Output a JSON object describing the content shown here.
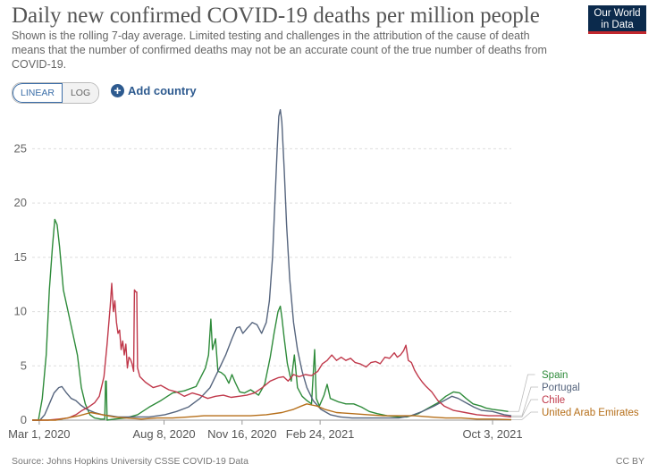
{
  "title": "Daily new confirmed COVID-19 deaths per million people",
  "subtitle": "Shown is the rolling 7-day average. Limited testing and challenges in the attribution of the cause of death means that the number of confirmed deaths may not be an accurate count of the true number of deaths from COVID-19.",
  "logo": {
    "line1": "Our World",
    "line2": "in Data"
  },
  "controls": {
    "linear_label": "LINEAR",
    "log_label": "LOG",
    "add_country_label": "Add country"
  },
  "footer": {
    "source": "Source: Johns Hopkins University CSSE COVID-19 Data",
    "license": "CC BY"
  },
  "chart_data": {
    "type": "line",
    "xaxis": "day",
    "xlim": [
      0,
      614
    ],
    "ylim": [
      0,
      28
    ],
    "yticks": [
      0,
      5,
      10,
      15,
      20,
      25
    ],
    "xticks": [
      {
        "day": 9,
        "label": "Mar 1, 2020"
      },
      {
        "day": 169,
        "label": "Aug 8, 2020"
      },
      {
        "day": 269,
        "label": "Nov 16, 2020"
      },
      {
        "day": 369,
        "label": "Feb 24, 2021"
      },
      {
        "day": 590,
        "label": "Oct 3, 2021"
      }
    ],
    "grid": true,
    "series": [
      {
        "name": "Spain",
        "color": "#2e8b3a",
        "points": [
          [
            0,
            0
          ],
          [
            8,
            0
          ],
          [
            13,
            2
          ],
          [
            18,
            6
          ],
          [
            22,
            12
          ],
          [
            26,
            16
          ],
          [
            29,
            18.5
          ],
          [
            32,
            18
          ],
          [
            35,
            16
          ],
          [
            40,
            12
          ],
          [
            46,
            10
          ],
          [
            52,
            8
          ],
          [
            58,
            6
          ],
          [
            63,
            3
          ],
          [
            68,
            1.5
          ],
          [
            74,
            0.5
          ],
          [
            80,
            0.2
          ],
          [
            88,
            0.1
          ],
          [
            93,
            0.1
          ],
          [
            94,
            3.6
          ],
          [
            95,
            3.6
          ],
          [
            96,
            0
          ],
          [
            105,
            0.1
          ],
          [
            120,
            0.2
          ],
          [
            135,
            0.5
          ],
          [
            150,
            1.2
          ],
          [
            165,
            1.8
          ],
          [
            180,
            2.5
          ],
          [
            195,
            2.7
          ],
          [
            210,
            3.1
          ],
          [
            222,
            4.8
          ],
          [
            226,
            6
          ],
          [
            229,
            9.3
          ],
          [
            231,
            6.5
          ],
          [
            235,
            7.5
          ],
          [
            238,
            4.5
          ],
          [
            242,
            4.4
          ],
          [
            247,
            4.1
          ],
          [
            252,
            3.4
          ],
          [
            256,
            4.2
          ],
          [
            260,
            3.5
          ],
          [
            266,
            2.6
          ],
          [
            272,
            2.5
          ],
          [
            280,
            2.8
          ],
          [
            290,
            2.3
          ],
          [
            298,
            3.3
          ],
          [
            305,
            5.8
          ],
          [
            310,
            8
          ],
          [
            315,
            10
          ],
          [
            318,
            10.5
          ],
          [
            320,
            9.5
          ],
          [
            323,
            7.5
          ],
          [
            327,
            5.2
          ],
          [
            332,
            3.6
          ],
          [
            336,
            6
          ],
          [
            338,
            4.5
          ],
          [
            340,
            3
          ],
          [
            346,
            2.2
          ],
          [
            352,
            1.8
          ],
          [
            358,
            1.5
          ],
          [
            362,
            6.5
          ],
          [
            364,
            2
          ],
          [
            368,
            1.3
          ],
          [
            374,
            2.3
          ],
          [
            378,
            3.3
          ],
          [
            382,
            2
          ],
          [
            392,
            1.7
          ],
          [
            402,
            1.5
          ],
          [
            412,
            1.5
          ],
          [
            422,
            1.2
          ],
          [
            432,
            0.8
          ],
          [
            442,
            0.6
          ],
          [
            455,
            0.4
          ],
          [
            470,
            0.3
          ],
          [
            480,
            0.3
          ],
          [
            495,
            0.6
          ],
          [
            510,
            1.2
          ],
          [
            520,
            1.6
          ],
          [
            530,
            2.2
          ],
          [
            540,
            2.6
          ],
          [
            548,
            2.5
          ],
          [
            556,
            2
          ],
          [
            565,
            1.5
          ],
          [
            575,
            1.3
          ],
          [
            582,
            1.1
          ],
          [
            590,
            1
          ],
          [
            600,
            0.9
          ],
          [
            610,
            0.8
          ]
        ]
      },
      {
        "name": "Portugal",
        "color": "#56657e",
        "points": [
          [
            0,
            0
          ],
          [
            10,
            0
          ],
          [
            16,
            0.5
          ],
          [
            22,
            1.5
          ],
          [
            28,
            2.5
          ],
          [
            34,
            3
          ],
          [
            38,
            3.1
          ],
          [
            44,
            2.5
          ],
          [
            50,
            2
          ],
          [
            56,
            1.8
          ],
          [
            62,
            1.4
          ],
          [
            70,
            1
          ],
          [
            80,
            0.7
          ],
          [
            90,
            0.5
          ],
          [
            100,
            0.4
          ],
          [
            110,
            0.3
          ],
          [
            130,
            0.3
          ],
          [
            150,
            0.3
          ],
          [
            170,
            0.5
          ],
          [
            185,
            0.8
          ],
          [
            200,
            1.2
          ],
          [
            215,
            2
          ],
          [
            228,
            3
          ],
          [
            238,
            4.5
          ],
          [
            248,
            6
          ],
          [
            256,
            7.5
          ],
          [
            262,
            8.5
          ],
          [
            266,
            8.6
          ],
          [
            270,
            8
          ],
          [
            276,
            8.5
          ],
          [
            282,
            9
          ],
          [
            288,
            8.8
          ],
          [
            294,
            8
          ],
          [
            300,
            9
          ],
          [
            304,
            11
          ],
          [
            308,
            15
          ],
          [
            311,
            20
          ],
          [
            314,
            25
          ],
          [
            316,
            28
          ],
          [
            318,
            28.6
          ],
          [
            320,
            27.5
          ],
          [
            323,
            23
          ],
          [
            326,
            18
          ],
          [
            330,
            13
          ],
          [
            335,
            9
          ],
          [
            340,
            6.5
          ],
          [
            346,
            4.5
          ],
          [
            352,
            3
          ],
          [
            360,
            1.8
          ],
          [
            370,
            1
          ],
          [
            382,
            0.5
          ],
          [
            395,
            0.3
          ],
          [
            410,
            0.2
          ],
          [
            430,
            0.2
          ],
          [
            450,
            0.2
          ],
          [
            470,
            0.2
          ],
          [
            485,
            0.4
          ],
          [
            500,
            0.8
          ],
          [
            515,
            1.3
          ],
          [
            528,
            1.8
          ],
          [
            538,
            2.2
          ],
          [
            546,
            2
          ],
          [
            556,
            1.6
          ],
          [
            566,
            1.2
          ],
          [
            576,
            0.9
          ],
          [
            590,
            0.8
          ],
          [
            605,
            0.5
          ],
          [
            614,
            0.4
          ]
        ]
      },
      {
        "name": "Chile",
        "color": "#c0394b",
        "points": [
          [
            0,
            0
          ],
          [
            20,
            0
          ],
          [
            34,
            0.1
          ],
          [
            46,
            0.2
          ],
          [
            56,
            0.5
          ],
          [
            64,
            0.9
          ],
          [
            72,
            1.2
          ],
          [
            80,
            1.6
          ],
          [
            86,
            2.2
          ],
          [
            92,
            4
          ],
          [
            96,
            7
          ],
          [
            100,
            10.5
          ],
          [
            102,
            12.6
          ],
          [
            104,
            10
          ],
          [
            106,
            11
          ],
          [
            108,
            9
          ],
          [
            110,
            8
          ],
          [
            112,
            8.3
          ],
          [
            114,
            6.5
          ],
          [
            116,
            7.3
          ],
          [
            118,
            6
          ],
          [
            120,
            7
          ],
          [
            122,
            4.8
          ],
          [
            124,
            5.8
          ],
          [
            126,
            5.6
          ],
          [
            128,
            5.2
          ],
          [
            130,
            4.5
          ],
          [
            131,
            12
          ],
          [
            133,
            11.8
          ],
          [
            134,
            11.8
          ],
          [
            135,
            4.8
          ],
          [
            138,
            4
          ],
          [
            145,
            3.5
          ],
          [
            155,
            3
          ],
          [
            165,
            3.2
          ],
          [
            175,
            2.8
          ],
          [
            185,
            2.6
          ],
          [
            195,
            2.2
          ],
          [
            205,
            2.5
          ],
          [
            215,
            2.3
          ],
          [
            225,
            2
          ],
          [
            235,
            2.2
          ],
          [
            245,
            2.3
          ],
          [
            255,
            2.1
          ],
          [
            265,
            2.2
          ],
          [
            275,
            2.3
          ],
          [
            285,
            2.5
          ],
          [
            295,
            3
          ],
          [
            305,
            3.6
          ],
          [
            315,
            3.9
          ],
          [
            322,
            4
          ],
          [
            328,
            3.6
          ],
          [
            335,
            4.2
          ],
          [
            342,
            4
          ],
          [
            350,
            4.2
          ],
          [
            358,
            4.1
          ],
          [
            366,
            4.5
          ],
          [
            372,
            5.2
          ],
          [
            378,
            5.5
          ],
          [
            384,
            6
          ],
          [
            390,
            5.5
          ],
          [
            396,
            5.8
          ],
          [
            402,
            5.5
          ],
          [
            408,
            5.7
          ],
          [
            414,
            5.3
          ],
          [
            420,
            5.2
          ],
          [
            428,
            4.9
          ],
          [
            434,
            5.3
          ],
          [
            440,
            5.4
          ],
          [
            446,
            5.2
          ],
          [
            452,
            5.8
          ],
          [
            458,
            5.7
          ],
          [
            464,
            6.2
          ],
          [
            468,
            5.8
          ],
          [
            472,
            6
          ],
          [
            476,
            6.4
          ],
          [
            479,
            6.9
          ],
          [
            482,
            5.5
          ],
          [
            486,
            5.3
          ],
          [
            490,
            4.6
          ],
          [
            495,
            4
          ],
          [
            500,
            3.5
          ],
          [
            505,
            3.1
          ],
          [
            512,
            2.6
          ],
          [
            520,
            1.8
          ],
          [
            528,
            1.3
          ],
          [
            540,
            0.9
          ],
          [
            555,
            0.7
          ],
          [
            570,
            0.5
          ],
          [
            585,
            0.4
          ],
          [
            600,
            0.4
          ],
          [
            614,
            0.3
          ]
        ]
      },
      {
        "name": "United Arab Emirates",
        "color": "#b66f1a",
        "points": [
          [
            0,
            0
          ],
          [
            30,
            0
          ],
          [
            45,
            0.2
          ],
          [
            60,
            0.4
          ],
          [
            75,
            0.7
          ],
          [
            90,
            0.5
          ],
          [
            105,
            0.3
          ],
          [
            120,
            0.2
          ],
          [
            140,
            0.1
          ],
          [
            160,
            0.2
          ],
          [
            180,
            0.2
          ],
          [
            200,
            0.3
          ],
          [
            220,
            0.4
          ],
          [
            240,
            0.4
          ],
          [
            260,
            0.4
          ],
          [
            280,
            0.4
          ],
          [
            300,
            0.5
          ],
          [
            320,
            0.7
          ],
          [
            335,
            1
          ],
          [
            345,
            1.3
          ],
          [
            352,
            1.5
          ],
          [
            358,
            1.4
          ],
          [
            365,
            1.3
          ],
          [
            375,
            1
          ],
          [
            390,
            0.7
          ],
          [
            410,
            0.6
          ],
          [
            430,
            0.5
          ],
          [
            450,
            0.4
          ],
          [
            470,
            0.4
          ],
          [
            490,
            0.4
          ],
          [
            510,
            0.3
          ],
          [
            530,
            0.2
          ],
          [
            550,
            0.2
          ],
          [
            570,
            0.1
          ],
          [
            590,
            0.1
          ],
          [
            614,
            0.05
          ]
        ]
      }
    ]
  }
}
